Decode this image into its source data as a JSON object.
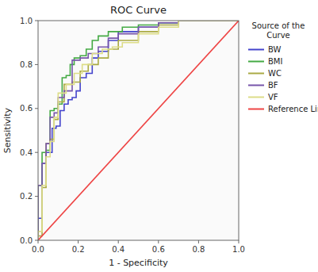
{
  "chart_data": {
    "type": "line",
    "title": "ROC Curve",
    "x_label": "1 - Specificity",
    "y_label": "Sensitivity",
    "legend_title": "Source of the\nCurve",
    "legend": "right",
    "xlim": [
      0.0,
      1.0
    ],
    "ylim": [
      0.0,
      1.0
    ],
    "xticks": [
      {
        "value": 0.0,
        "label": "0.0"
      },
      0.2,
      0.4,
      0.6,
      0.8,
      {
        "value": 1.0,
        "label": "1.0"
      }
    ],
    "yticks": [
      {
        "value": 0.0,
        "label": "0.0"
      },
      0.2,
      0.4,
      0.6,
      0.8,
      {
        "value": 1.0,
        "label": "1.0"
      }
    ],
    "series": [
      {
        "name": "BW",
        "color": "#4444cc",
        "x": [
          0.0,
          0.0,
          0.02,
          0.02,
          0.04,
          0.04,
          0.07,
          0.07,
          0.09,
          0.09,
          0.11,
          0.11,
          0.13,
          0.13,
          0.15,
          0.15,
          0.17,
          0.17,
          0.19,
          0.19,
          0.21,
          0.21,
          0.24,
          0.24,
          0.27,
          0.27,
          0.3,
          0.3,
          0.35,
          0.35,
          0.4,
          0.4,
          0.5,
          0.5,
          0.6,
          0.6,
          0.7,
          0.7,
          1.0
        ],
        "values": [
          0.0,
          0.1,
          0.1,
          0.35,
          0.35,
          0.4,
          0.4,
          0.51,
          0.51,
          0.52,
          0.52,
          0.59,
          0.59,
          0.62,
          0.62,
          0.64,
          0.64,
          0.65,
          0.65,
          0.68,
          0.68,
          0.74,
          0.74,
          0.76,
          0.76,
          0.83,
          0.83,
          0.86,
          0.86,
          0.91,
          0.91,
          0.95,
          0.95,
          0.97,
          0.97,
          0.99,
          0.99,
          1.0,
          1.0
        ]
      },
      {
        "name": "BMI",
        "color": "#44aa44",
        "x": [
          0.0,
          0.0,
          0.02,
          0.02,
          0.04,
          0.04,
          0.06,
          0.06,
          0.08,
          0.08,
          0.1,
          0.1,
          0.12,
          0.12,
          0.14,
          0.14,
          0.16,
          0.16,
          0.18,
          0.18,
          0.21,
          0.21,
          0.24,
          0.24,
          0.27,
          0.27,
          0.3,
          0.3,
          0.35,
          0.35,
          0.42,
          0.42,
          0.5,
          0.5,
          0.6,
          0.6,
          0.7,
          0.7,
          1.0
        ],
        "values": [
          0.0,
          0.25,
          0.25,
          0.4,
          0.4,
          0.41,
          0.41,
          0.59,
          0.59,
          0.6,
          0.6,
          0.62,
          0.62,
          0.74,
          0.74,
          0.75,
          0.75,
          0.8,
          0.8,
          0.83,
          0.83,
          0.84,
          0.84,
          0.87,
          0.87,
          0.91,
          0.91,
          0.93,
          0.93,
          0.95,
          0.95,
          0.97,
          0.97,
          0.98,
          0.98,
          0.99,
          0.99,
          1.0,
          1.0
        ]
      },
      {
        "name": "WC",
        "color": "#aaaa44",
        "x": [
          0.0,
          0.0,
          0.02,
          0.02,
          0.04,
          0.04,
          0.06,
          0.06,
          0.08,
          0.08,
          0.1,
          0.1,
          0.13,
          0.13,
          0.17,
          0.17,
          0.21,
          0.21,
          0.25,
          0.25,
          0.3,
          0.3,
          0.35,
          0.35,
          0.4,
          0.4,
          0.5,
          0.5,
          0.6,
          0.6,
          0.7,
          0.7,
          1.0
        ],
        "values": [
          0.0,
          0.02,
          0.02,
          0.24,
          0.24,
          0.44,
          0.44,
          0.46,
          0.46,
          0.55,
          0.55,
          0.63,
          0.63,
          0.71,
          0.71,
          0.72,
          0.72,
          0.77,
          0.77,
          0.8,
          0.8,
          0.83,
          0.83,
          0.87,
          0.87,
          0.91,
          0.91,
          0.95,
          0.95,
          0.98,
          0.98,
          1.0,
          1.0
        ]
      },
      {
        "name": "BF",
        "color": "#7755aa",
        "x": [
          0.0,
          0.0,
          0.02,
          0.02,
          0.04,
          0.04,
          0.06,
          0.06,
          0.08,
          0.08,
          0.1,
          0.1,
          0.13,
          0.13,
          0.17,
          0.17,
          0.21,
          0.21,
          0.25,
          0.25,
          0.3,
          0.3,
          0.35,
          0.35,
          0.4,
          0.4,
          0.5,
          0.5,
          0.6,
          0.6,
          0.7,
          0.7,
          1.0
        ],
        "values": [
          0.0,
          0.25,
          0.25,
          0.35,
          0.35,
          0.44,
          0.44,
          0.56,
          0.56,
          0.58,
          0.58,
          0.65,
          0.65,
          0.68,
          0.68,
          0.82,
          0.82,
          0.83,
          0.83,
          0.85,
          0.85,
          0.88,
          0.88,
          0.92,
          0.92,
          0.94,
          0.94,
          0.97,
          0.97,
          0.99,
          0.99,
          1.0,
          1.0
        ]
      },
      {
        "name": "VF",
        "color": "#dddd88",
        "x": [
          0.0,
          0.0,
          0.02,
          0.02,
          0.04,
          0.04,
          0.06,
          0.06,
          0.08,
          0.08,
          0.1,
          0.1,
          0.14,
          0.14,
          0.18,
          0.18,
          0.22,
          0.22,
          0.27,
          0.27,
          0.32,
          0.32,
          0.37,
          0.37,
          0.42,
          0.42,
          0.5,
          0.5,
          0.6,
          0.6,
          0.7,
          0.7,
          1.0
        ],
        "values": [
          0.0,
          0.04,
          0.04,
          0.25,
          0.25,
          0.38,
          0.38,
          0.45,
          0.45,
          0.56,
          0.56,
          0.67,
          0.67,
          0.71,
          0.71,
          0.76,
          0.76,
          0.8,
          0.8,
          0.85,
          0.85,
          0.87,
          0.87,
          0.88,
          0.88,
          0.9,
          0.9,
          0.94,
          0.94,
          0.97,
          0.97,
          1.0,
          1.0
        ]
      },
      {
        "name": "Reference Line",
        "color": "#ee4444",
        "x": [
          0,
          1
        ],
        "values": [
          0,
          1
        ]
      }
    ]
  }
}
